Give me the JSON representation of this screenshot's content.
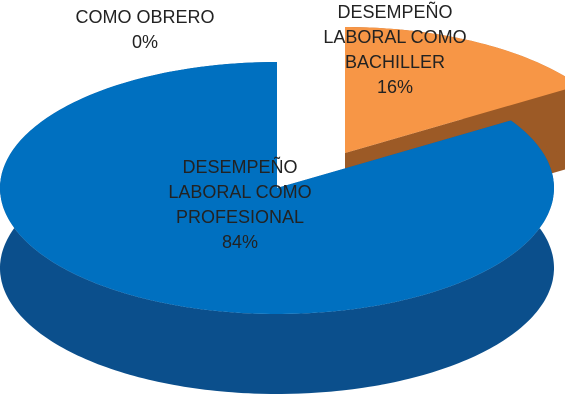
{
  "chart_data": {
    "type": "pie",
    "categories": [
      "COMO OBRERO",
      "DESEMPEÑO LABORAL COMO BACHILLER",
      "DESEMPEÑO LABORAL COMO PROFESIONAL"
    ],
    "values": [
      0,
      16,
      84
    ],
    "value_labels": [
      "0%",
      "16%",
      "84%"
    ],
    "colors": [
      "#c0504d",
      "#f79646",
      "#0070c0"
    ],
    "side_colors": [
      "#7f2f2d",
      "#9c5a26",
      "#0b4f8c"
    ],
    "three_d": true
  }
}
